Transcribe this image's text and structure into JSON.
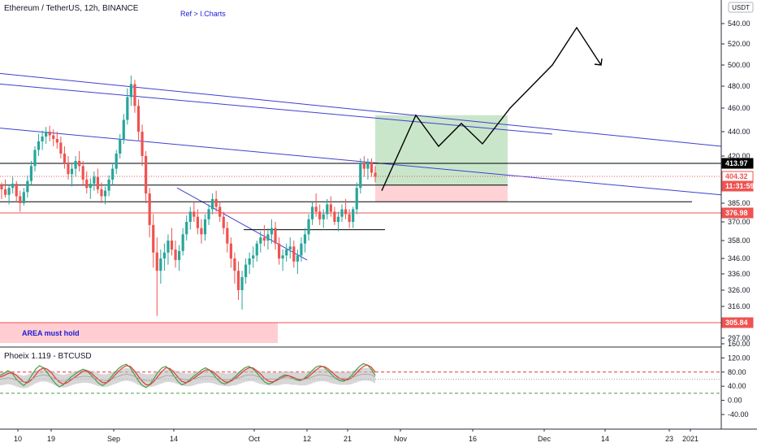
{
  "header": {
    "title": "Ethereum / TetherUS, 12h, BINANCE",
    "ref": "Ref  > I.Charts",
    "currency": "USDT"
  },
  "chart_data": [
    {
      "type": "candlestick",
      "title": "Ethereum / TetherUS, 12h, BINANCE",
      "y_ticks": [
        540,
        520,
        500,
        480,
        460,
        440,
        420,
        385,
        370,
        358,
        346,
        336,
        326,
        316,
        297
      ],
      "x_ticks": [
        "10",
        "19",
        "Sep",
        "14",
        "Oct",
        "12",
        "21",
        "Nov",
        "16",
        "Dec",
        "14",
        "23",
        "2021"
      ],
      "price_labels": [
        {
          "value": "413.97",
          "color": "#000000",
          "text_color": "#ffffff"
        },
        {
          "value": "404.32",
          "color": "#ffffff",
          "text_color": "#ef5350"
        },
        {
          "value": "11:31:59",
          "color": "#ef5350",
          "text_color": "#ffffff"
        },
        {
          "value": "376.98",
          "color": "#ef5350",
          "text_color": "#ffffff"
        },
        {
          "value": "305.84",
          "color": "#ef5350",
          "text_color": "#ffffff"
        }
      ],
      "annotations": [
        {
          "text": "AREA must hold",
          "color": "#1a1ad6"
        }
      ],
      "candles": [
        [
          398,
          400,
          388,
          395
        ],
        [
          395,
          402,
          389,
          391
        ],
        [
          391,
          398,
          384,
          396
        ],
        [
          396,
          404,
          392,
          399
        ],
        [
          399,
          401,
          386,
          390
        ],
        [
          390,
          394,
          378,
          385
        ],
        [
          385,
          396,
          383,
          393
        ],
        [
          393,
          405,
          389,
          401
        ],
        [
          401,
          416,
          398,
          412
        ],
        [
          412,
          428,
          408,
          425
        ],
        [
          425,
          438,
          420,
          432
        ],
        [
          432,
          441,
          425,
          436
        ],
        [
          436,
          444,
          430,
          440
        ],
        [
          440,
          445,
          432,
          437
        ],
        [
          437,
          442,
          428,
          434
        ],
        [
          434,
          440,
          426,
          431
        ],
        [
          431,
          436,
          418,
          422
        ],
        [
          422,
          428,
          410,
          414
        ],
        [
          414,
          420,
          402,
          406
        ],
        [
          406,
          414,
          397,
          410
        ],
        [
          410,
          420,
          404,
          416
        ],
        [
          416,
          424,
          408,
          412
        ],
        [
          412,
          416,
          398,
          402
        ],
        [
          402,
          408,
          392,
          396
        ],
        [
          396,
          403,
          388,
          399
        ],
        [
          399,
          408,
          394,
          404
        ],
        [
          404,
          410,
          392,
          395
        ],
        [
          395,
          400,
          385,
          390
        ],
        [
          390,
          397,
          384,
          394
        ],
        [
          394,
          405,
          390,
          402
        ],
        [
          402,
          414,
          398,
          410
        ],
        [
          410,
          425,
          406,
          422
        ],
        [
          422,
          438,
          418,
          434
        ],
        [
          434,
          455,
          430,
          450
        ],
        [
          450,
          478,
          446,
          470
        ],
        [
          470,
          490,
          462,
          482
        ],
        [
          482,
          486,
          456,
          462
        ],
        [
          462,
          468,
          432,
          440
        ],
        [
          440,
          446,
          412,
          420
        ],
        [
          420,
          424,
          385,
          392
        ],
        [
          392,
          396,
          360,
          368
        ],
        [
          368,
          376,
          340,
          350
        ],
        [
          350,
          360,
          310,
          338
        ],
        [
          338,
          352,
          330,
          346
        ],
        [
          346,
          356,
          338,
          350
        ],
        [
          350,
          362,
          342,
          358
        ],
        [
          358,
          366,
          348,
          352
        ],
        [
          352,
          358,
          340,
          345
        ],
        [
          345,
          355,
          338,
          351
        ],
        [
          351,
          366,
          348,
          362
        ],
        [
          362,
          375,
          358,
          370
        ],
        [
          370,
          382,
          365,
          378
        ],
        [
          378,
          386,
          370,
          374
        ],
        [
          374,
          380,
          362,
          366
        ],
        [
          366,
          372,
          356,
          362
        ],
        [
          362,
          376,
          358,
          372
        ],
        [
          372,
          384,
          368,
          380
        ],
        [
          380,
          392,
          376,
          388
        ],
        [
          388,
          394,
          378,
          382
        ],
        [
          382,
          386,
          370,
          374
        ],
        [
          374,
          378,
          362,
          366
        ],
        [
          366,
          370,
          350,
          356
        ],
        [
          356,
          360,
          340,
          346
        ],
        [
          346,
          350,
          330,
          338
        ],
        [
          338,
          344,
          320,
          326
        ],
        [
          326,
          338,
          314,
          334
        ],
        [
          334,
          346,
          330,
          342
        ],
        [
          342,
          350,
          336,
          346
        ],
        [
          346,
          354,
          340,
          348
        ],
        [
          348,
          358,
          344,
          356
        ],
        [
          356,
          364,
          350,
          360
        ],
        [
          360,
          368,
          354,
          358
        ],
        [
          358,
          366,
          352,
          362
        ],
        [
          362,
          372,
          356,
          366
        ],
        [
          366,
          370,
          352,
          356
        ],
        [
          356,
          360,
          342,
          346
        ],
        [
          346,
          352,
          338,
          348
        ],
        [
          348,
          356,
          344,
          352
        ],
        [
          352,
          360,
          346,
          354
        ],
        [
          354,
          358,
          340,
          344
        ],
        [
          344,
          352,
          336,
          348
        ],
        [
          348,
          360,
          344,
          356
        ],
        [
          356,
          366,
          350,
          362
        ],
        [
          362,
          376,
          358,
          372
        ],
        [
          372,
          386,
          368,
          382
        ],
        [
          382,
          392,
          374,
          378
        ],
        [
          378,
          384,
          368,
          372
        ],
        [
          372,
          380,
          366,
          376
        ],
        [
          376,
          388,
          372,
          384
        ],
        [
          384,
          390,
          374,
          378
        ],
        [
          378,
          382,
          368,
          370
        ],
        [
          370,
          378,
          364,
          374
        ],
        [
          374,
          384,
          370,
          380
        ],
        [
          380,
          388,
          372,
          376
        ],
        [
          376,
          380,
          366,
          370
        ],
        [
          370,
          382,
          366,
          380
        ],
        [
          380,
          400,
          376,
          396
        ],
        [
          396,
          418,
          392,
          414
        ],
        [
          414,
          420,
          404,
          410
        ],
        [
          410,
          418,
          402,
          415
        ],
        [
          415,
          418,
          404,
          407
        ],
        [
          407,
          412,
          400,
          404
        ]
      ],
      "lines": [
        {
          "type": "trendline",
          "from": [
            0,
            492
          ],
          "to": [
            888,
            428
          ]
        },
        {
          "type": "trendline",
          "from": [
            0,
            482
          ],
          "to": [
            680,
            438
          ]
        },
        {
          "type": "trendline",
          "from": [
            0,
            443
          ],
          "to": [
            888,
            391
          ]
        },
        {
          "type": "trendline",
          "from": [
            218,
            396
          ],
          "to": [
            378,
            345
          ]
        },
        {
          "type": "horizontal",
          "value": 413.97
        },
        {
          "type": "horizontal",
          "value": 398
        },
        {
          "type": "horizontal",
          "value": 386
        },
        {
          "type": "horizontal",
          "value": 376.98
        },
        {
          "type": "horizontal",
          "value": 365
        },
        {
          "type": "horizontal",
          "value": 305.84
        }
      ],
      "projection_path": [
        [
          470,
          394
        ],
        [
          512,
          454
        ],
        [
          540,
          428
        ],
        [
          568,
          447
        ],
        [
          594,
          430
        ],
        [
          628,
          460
        ],
        [
          680,
          500
        ],
        [
          710,
          536
        ],
        [
          740,
          500
        ]
      ],
      "rr_box": {
        "entry": 398,
        "target": 454,
        "stop": 386
      },
      "support_zone": {
        "top": 305.84,
        "bottom": 294
      },
      "indicator": {
        "title": "Phoeix 1.119 - BTCUSD",
        "y_ticks": [
          160,
          120,
          80,
          40,
          0,
          -40
        ],
        "levels": {
          "upper": 80,
          "middle": 60,
          "lower": 20
        },
        "series": [
          {
            "color": "#43a047",
            "values": [
              70,
              76,
              84,
              78,
              62,
              50,
              42,
              52,
              70,
              88,
              98,
              92,
              78,
              62,
              48,
              38,
              44,
              56,
              66,
              74,
              82,
              88,
              84,
              72,
              60,
              48,
              42,
              50,
              64,
              78,
              90,
              98,
              102,
              92,
              74,
              56,
              42,
              36,
              46,
              62,
              80,
              92,
              96,
              86,
              70,
              54,
              44,
              48,
              58,
              68,
              76,
              86,
              92,
              86,
              74,
              60,
              50,
              46,
              52,
              62,
              72,
              84,
              92,
              96,
              90,
              78,
              64,
              52,
              46,
              50,
              58,
              66,
              72,
              70,
              64,
              58,
              56,
              62,
              72,
              84,
              94,
              98,
              94,
              84,
              72,
              62,
              56,
              54,
              60,
              70,
              84,
              96,
              104,
              100,
              88,
              70
            ]
          },
          {
            "color": "#e53935",
            "values": [
              66,
              70,
              76,
              78,
              72,
              62,
              52,
              50,
              58,
              72,
              86,
              92,
              88,
              78,
              64,
              52,
              46,
              50,
              58,
              66,
              74,
              82,
              84,
              78,
              68,
              58,
              50,
              50,
              58,
              70,
              82,
              92,
              98,
              96,
              84,
              68,
              54,
              44,
              44,
              54,
              68,
              82,
              92,
              90,
              80,
              66,
              54,
              50,
              54,
              62,
              70,
              78,
              86,
              86,
              80,
              70,
              60,
              52,
              52,
              58,
              66,
              76,
              86,
              92,
              92,
              84,
              74,
              62,
              54,
              52,
              56,
              62,
              68,
              70,
              66,
              62,
              58,
              60,
              66,
              76,
              86,
              94,
              96,
              90,
              80,
              70,
              62,
              58,
              58,
              64,
              74,
              86,
              96,
              100,
              94,
              80
            ]
          },
          {
            "color": "#9e9e9e",
            "values": [
              60,
              62,
              64,
              62,
              58,
              54,
              52,
              54,
              60,
              66,
              70,
              72,
              70,
              66,
              60,
              56,
              54,
              56,
              60,
              64,
              66,
              68,
              68,
              66,
              62,
              58,
              56,
              56,
              60,
              64,
              68,
              72,
              74,
              72,
              68,
              62,
              58,
              56,
              56,
              58,
              62,
              66,
              70,
              70,
              68,
              64,
              60,
              58,
              58,
              60,
              64,
              66,
              68,
              68,
              66,
              62,
              60,
              58,
              58,
              60,
              62,
              66,
              70,
              72,
              72,
              68,
              64,
              62,
              60,
              60,
              60,
              62,
              64,
              64,
              62,
              62,
              60,
              60,
              62,
              66,
              70,
              72,
              72,
              70,
              66,
              64,
              62,
              62,
              62,
              64,
              68,
              72,
              74,
              74,
              72,
              66
            ]
          }
        ]
      }
    }
  ]
}
